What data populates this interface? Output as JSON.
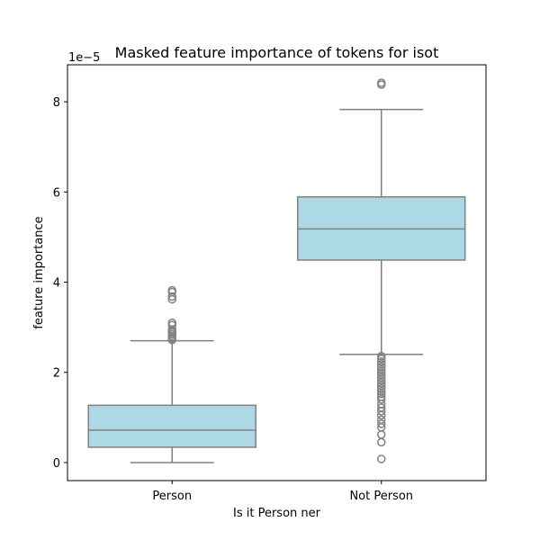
{
  "chart_data": {
    "type": "box",
    "title": "Masked feature importance of tokens for isot",
    "xlabel": "Is it Person ner",
    "ylabel": "feature importance",
    "scale_label": "1e−5",
    "scale_factor": 1e-05,
    "categories": [
      "Person",
      "Not Person"
    ],
    "ylim": [
      -0.4,
      8.82
    ],
    "yticks": [
      0,
      2,
      4,
      6,
      8
    ],
    "ytick_labels": [
      "0",
      "2",
      "4",
      "6",
      "8"
    ],
    "box_color": "#add8e6",
    "line_color": "#808080",
    "grid": false,
    "boxes": [
      {
        "category": "Person",
        "whisker_low": 0.0,
        "q1": 0.34,
        "median": 0.72,
        "q3": 1.27,
        "whisker_high": 2.7,
        "outliers": [
          2.72,
          2.75,
          2.8,
          2.84,
          2.88,
          2.92,
          2.95,
          3.05,
          3.1,
          3.62,
          3.68,
          3.78,
          3.82
        ]
      },
      {
        "category": "Not Person",
        "whisker_low": 2.4,
        "q1": 4.49,
        "median": 5.18,
        "q3": 5.89,
        "whisker_high": 7.83,
        "outliers": [
          8.38,
          8.42,
          2.36,
          2.3,
          2.24,
          2.18,
          2.12,
          2.06,
          2.0,
          1.94,
          1.88,
          1.82,
          1.76,
          1.7,
          1.64,
          1.58,
          1.52,
          1.46,
          1.4,
          1.3,
          1.22,
          1.14,
          1.05,
          0.95,
          0.86,
          0.78,
          0.62,
          0.45,
          0.08
        ]
      }
    ]
  }
}
